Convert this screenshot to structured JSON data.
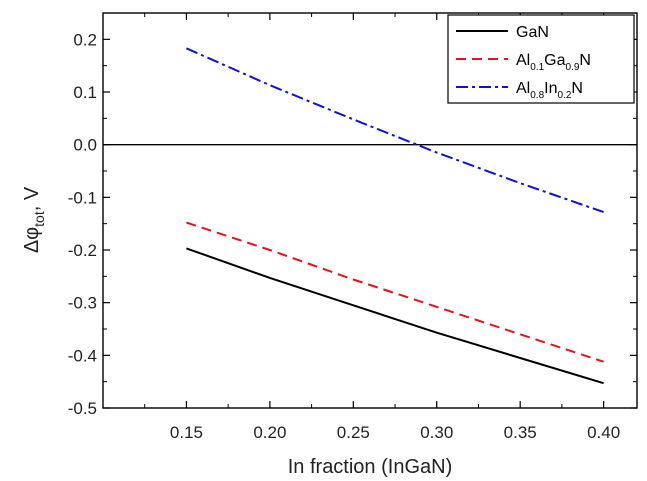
{
  "chart_data": {
    "type": "line",
    "title": "",
    "xlabel": "In fraction (InGaN)",
    "ylabel": {
      "base": "Δφ",
      "subscript": "tot",
      "suffix": ", V"
    },
    "xlim": [
      0.1,
      0.42
    ],
    "ylim": [
      -0.5,
      0.25
    ],
    "xticks": [
      "0.15",
      "0.20",
      "0.25",
      "0.30",
      "0.35",
      "0.40"
    ],
    "yticks": [
      "-0.5",
      "-0.4",
      "-0.3",
      "-0.2",
      "-0.1",
      "0.0",
      "0.1",
      "0.2"
    ],
    "reference_line_y": 0.0,
    "grid": false,
    "legend_position": "top-right",
    "series": [
      {
        "name": "GaN",
        "name_parts": [
          [
            "GaN",
            false
          ]
        ],
        "color": "#000000",
        "dash": "solid",
        "x": [
          0.15,
          0.2,
          0.25,
          0.3,
          0.35,
          0.4
        ],
        "y": [
          -0.197,
          -0.253,
          -0.305,
          -0.357,
          -0.405,
          -0.453
        ]
      },
      {
        "name": "Al0.1Ga0.9N",
        "name_parts": [
          [
            "Al",
            false
          ],
          [
            "0.1",
            true
          ],
          [
            "Ga",
            false
          ],
          [
            "0.9",
            true
          ],
          [
            "N",
            false
          ]
        ],
        "color": "#e8101c",
        "dash": "dashed",
        "x": [
          0.15,
          0.2,
          0.25,
          0.3,
          0.35,
          0.4
        ],
        "y": [
          -0.148,
          -0.2,
          -0.256,
          -0.308,
          -0.36,
          -0.412
        ]
      },
      {
        "name": "Al0.8In0.2N",
        "name_parts": [
          [
            "Al",
            false
          ],
          [
            "0.8",
            true
          ],
          [
            "In",
            false
          ],
          [
            "0.2",
            true
          ],
          [
            "N",
            false
          ]
        ],
        "color": "#1010d8",
        "dash": "dashdot",
        "x": [
          0.15,
          0.2,
          0.25,
          0.3,
          0.35,
          0.4
        ],
        "y": [
          0.183,
          0.113,
          0.048,
          -0.015,
          -0.073,
          -0.128
        ]
      }
    ]
  }
}
